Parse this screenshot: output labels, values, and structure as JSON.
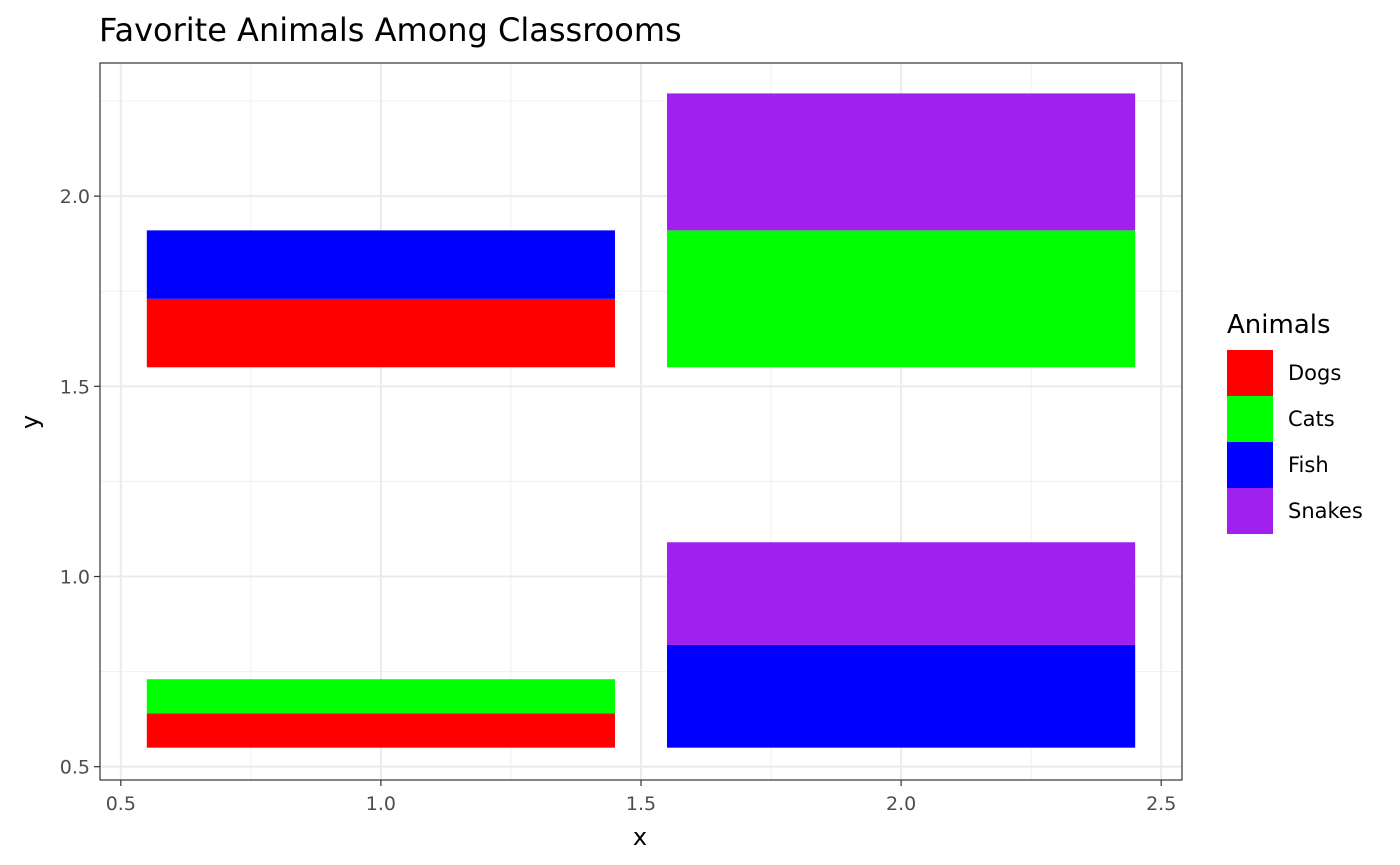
{
  "chart_data": {
    "type": "bar",
    "title": "Favorite Animals Among Classrooms",
    "xlabel": "x",
    "ylabel": "y",
    "xlim": [
      0.46,
      2.54
    ],
    "ylim": [
      0.465,
      2.35
    ],
    "x_ticks": [
      0.5,
      1.0,
      1.5,
      2.0,
      2.5
    ],
    "x_tick_labels": [
      "0.5",
      "1.0",
      "1.5",
      "2.0",
      "2.5"
    ],
    "y_ticks": [
      0.5,
      1.0,
      1.5,
      2.0
    ],
    "y_tick_labels": [
      "0.5",
      "1.0",
      "1.5",
      "2.0"
    ],
    "grid": true,
    "legend": {
      "title": "Animals",
      "placement": "right",
      "entries": [
        {
          "name": "Dogs",
          "color": "#FF0000"
        },
        {
          "name": "Cats",
          "color": "#00FF00"
        },
        {
          "name": "Fish",
          "color": "#0000FF"
        },
        {
          "name": "Snakes",
          "color": "#A020F0"
        }
      ]
    },
    "rectangles": [
      {
        "category": "Dogs",
        "xmin": 0.55,
        "xmax": 1.45,
        "ymin": 1.55,
        "ymax": 1.73
      },
      {
        "category": "Fish",
        "xmin": 0.55,
        "xmax": 1.45,
        "ymin": 1.73,
        "ymax": 1.91
      },
      {
        "category": "Cats",
        "xmin": 1.55,
        "xmax": 2.45,
        "ymin": 1.55,
        "ymax": 1.91
      },
      {
        "category": "Snakes",
        "xmin": 1.55,
        "xmax": 2.45,
        "ymin": 1.91,
        "ymax": 2.27
      },
      {
        "category": "Dogs",
        "xmin": 0.55,
        "xmax": 1.45,
        "ymin": 0.55,
        "ymax": 0.64
      },
      {
        "category": "Cats",
        "xmin": 0.55,
        "xmax": 1.45,
        "ymin": 0.64,
        "ymax": 0.73
      },
      {
        "category": "Fish",
        "xmin": 1.55,
        "xmax": 2.45,
        "ymin": 0.55,
        "ymax": 0.82
      },
      {
        "category": "Snakes",
        "xmin": 1.55,
        "xmax": 2.45,
        "ymin": 0.82,
        "ymax": 1.09
      }
    ]
  }
}
